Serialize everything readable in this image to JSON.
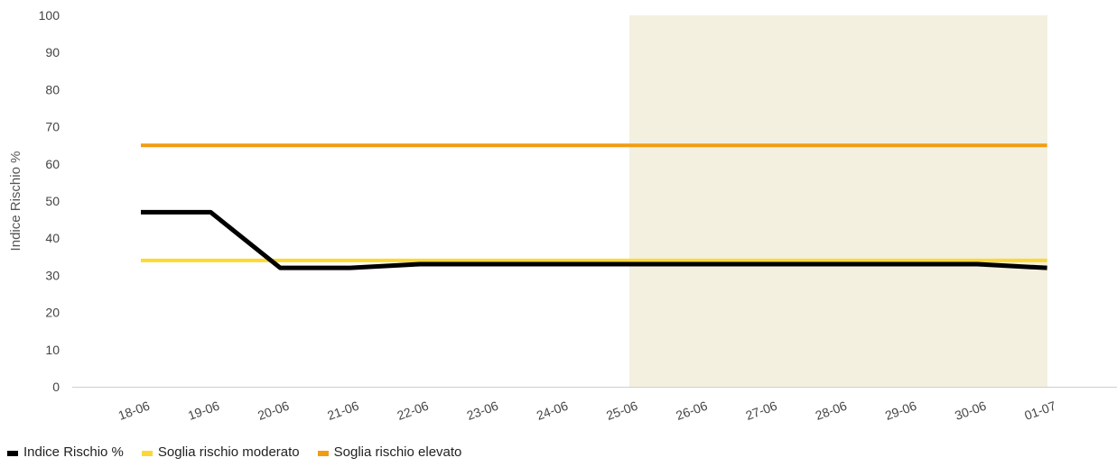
{
  "chart_data": {
    "type": "line",
    "ylabel": "Indice Rischio %",
    "ylim": [
      0,
      100
    ],
    "yticks": [
      0,
      10,
      20,
      30,
      40,
      50,
      60,
      70,
      80,
      90,
      100
    ],
    "categories": [
      "18-06",
      "19-06",
      "20-06",
      "21-06",
      "22-06",
      "23-06",
      "24-06",
      "25-06",
      "26-06",
      "27-06",
      "28-06",
      "29-06",
      "30-06",
      "01-07"
    ],
    "forecast_shading": {
      "from": "25-06",
      "to": "01-07",
      "color": "#f3f0e0"
    },
    "series": [
      {
        "name": "Indice Rischio %",
        "color": "#000000",
        "values": [
          47,
          47,
          32,
          32,
          33,
          33,
          33,
          33,
          33,
          33,
          33,
          33,
          33,
          32
        ]
      },
      {
        "name": "Soglia rischio moderato",
        "color": "#fdd835",
        "values": [
          34,
          34,
          34,
          34,
          34,
          34,
          34,
          34,
          34,
          34,
          34,
          34,
          34,
          34
        ]
      },
      {
        "name": "Soglia rischio elevato",
        "color": "#f39c12",
        "values": [
          65,
          65,
          65,
          65,
          65,
          65,
          65,
          65,
          65,
          65,
          65,
          65,
          65,
          65
        ]
      }
    ],
    "grid": false,
    "legend_position": "bottom-left"
  }
}
